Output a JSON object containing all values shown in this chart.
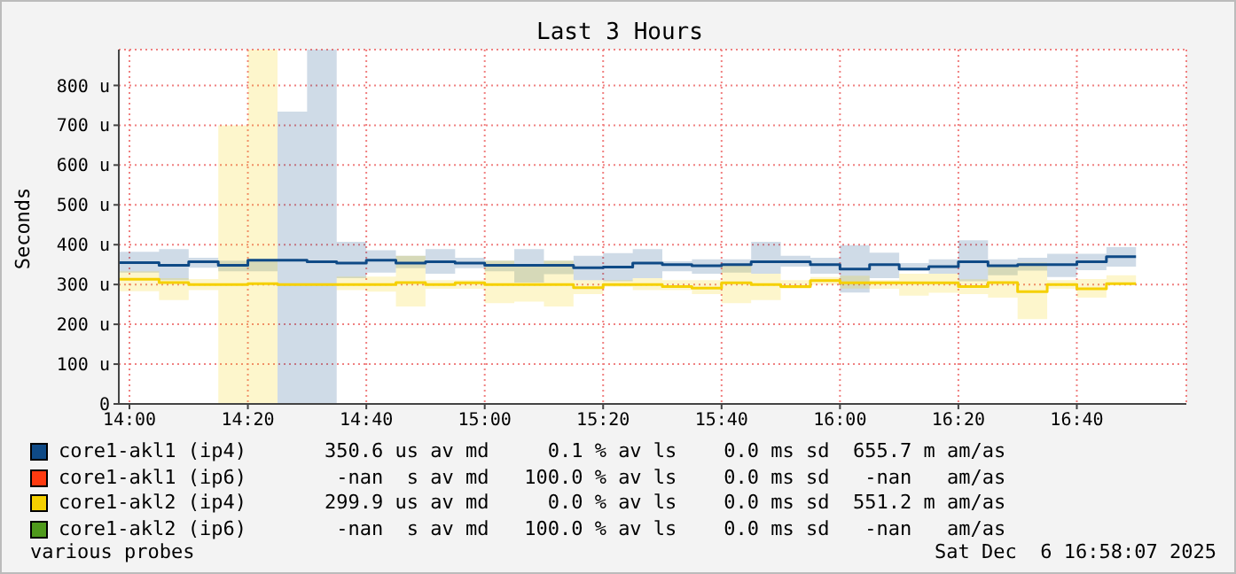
{
  "chart_data": {
    "type": "step",
    "title": "Last 3 Hours",
    "ylabel": "Seconds",
    "x": [
      13.97,
      14.0833,
      14.1667,
      14.25,
      14.3333,
      14.4167,
      14.5,
      14.5833,
      14.6667,
      14.75,
      14.8333,
      14.9167,
      15,
      15.0833,
      15.1667,
      15.25,
      15.3333,
      15.4167,
      15.5,
      15.5833,
      15.6667,
      15.75,
      15.8333,
      15.9167,
      16,
      16.0833,
      16.1667,
      16.25,
      16.3333,
      16.4167,
      16.5,
      16.5833,
      16.6667,
      16.75,
      16.8333
    ],
    "series": [
      {
        "name": "core1-akl1 (ip4)",
        "color": "#0f4a86",
        "values": [
          355,
          348,
          357,
          348,
          361,
          361,
          357,
          354,
          361,
          354,
          357,
          354,
          348,
          348,
          348,
          342,
          344,
          354,
          350,
          347,
          350,
          357,
          357,
          350,
          339,
          350,
          339,
          345,
          357,
          347,
          350,
          350,
          357,
          370,
          370
        ],
        "lower": [
          330,
          311,
          342,
          333,
          333,
          0,
          0,
          316,
          330,
          341,
          327,
          341,
          333,
          305,
          326,
          311,
          308,
          316,
          333,
          327,
          330,
          327,
          345,
          327,
          280,
          316,
          335,
          327,
          308,
          323,
          335,
          319,
          336,
          345,
          345
        ],
        "upper": [
          382,
          389,
          367,
          360,
          363,
          734,
          890,
          407,
          386,
          372,
          389,
          367,
          360,
          389,
          360,
          372,
          379,
          389,
          358,
          363,
          363,
          407,
          372,
          367,
          399,
          380,
          354,
          363,
          411,
          363,
          367,
          377,
          377,
          394,
          394
        ]
      },
      {
        "name": "core1-akl1 (ip6)",
        "color": "#ff3a10",
        "values": [
          null,
          null,
          null,
          null,
          null,
          null,
          null,
          null,
          null,
          null,
          null,
          null,
          null,
          null,
          null,
          null,
          null,
          null,
          null,
          null,
          null,
          null,
          null,
          null,
          null,
          null,
          null,
          null,
          null,
          null,
          null,
          null,
          null,
          null,
          null
        ]
      },
      {
        "name": "core1-akl2 (ip4)",
        "color": "#f5d000",
        "values": [
          313,
          305,
          300,
          300,
          302,
          300,
          300,
          300,
          300,
          305,
          300,
          304,
          300,
          300,
          300,
          292,
          300,
          300,
          295,
          291,
          304,
          300,
          295,
          310,
          304,
          304,
          304,
          304,
          295,
          305,
          282,
          300,
          289,
          302,
          302
        ],
        "lower": [
          283,
          261,
          286,
          0,
          0,
          null,
          null,
          286,
          282,
          245,
          289,
          289,
          253,
          257,
          245,
          276,
          294,
          286,
          286,
          276,
          253,
          261,
          289,
          300,
          290,
          289,
          272,
          279,
          276,
          267,
          213,
          289,
          267,
          300,
          300
        ],
        "upper": [
          333,
          316,
          314,
          700,
          890,
          null,
          null,
          320,
          320,
          372,
          311,
          311,
          360,
          345,
          360,
          311,
          311,
          316,
          311,
          311,
          348,
          327,
          311,
          319,
          322,
          311,
          327,
          327,
          313,
          345,
          355,
          311,
          314,
          323,
          323
        ]
      },
      {
        "name": "core1-akl2 (ip6)",
        "color": "#4f9a1c",
        "values": [
          null,
          null,
          null,
          null,
          null,
          null,
          null,
          null,
          null,
          null,
          null,
          null,
          null,
          null,
          null,
          null,
          null,
          null,
          null,
          null,
          null,
          null,
          null,
          null,
          null,
          null,
          null,
          null,
          null,
          null,
          null,
          null,
          null,
          null,
          null
        ]
      }
    ],
    "xlim": [
      13.97,
      16.975
    ],
    "xticks": [
      {
        "value": 14,
        "label": "14:00"
      },
      {
        "value": 14.3333,
        "label": "14:20"
      },
      {
        "value": 14.6667,
        "label": "14:40"
      },
      {
        "value": 15,
        "label": "15:00"
      },
      {
        "value": 15.3333,
        "label": "15:20"
      },
      {
        "value": 15.6667,
        "label": "15:40"
      },
      {
        "value": 16,
        "label": "16:00"
      },
      {
        "value": 16.3333,
        "label": "16:20"
      },
      {
        "value": 16.6667,
        "label": "16:40"
      }
    ],
    "ylim": [
      0,
      890
    ],
    "yticks": [
      0,
      {
        "value": 100,
        "label": "100 u"
      },
      {
        "value": 200,
        "label": "200 u"
      },
      {
        "value": 300,
        "label": "300 u"
      },
      {
        "value": 400,
        "label": "400 u"
      },
      {
        "value": 500,
        "label": "500 u"
      },
      {
        "value": 600,
        "label": "600 u"
      },
      {
        "value": 700,
        "label": "700 u"
      },
      {
        "value": 800,
        "label": "800 u"
      }
    ],
    "grid": true,
    "legend": "bottom",
    "annotations": [
      "350.6 us av md     0.1 % av ls    0.0 ms sd  655.7 m am/as",
      " -nan  s av md   100.0 % av ls    0.0 ms sd   -nan   am/as",
      "299.9 us av md     0.0 % av ls    0.0 ms sd  551.2 m am/as",
      " -nan  s av md   100.0 % av ls    0.0 ms sd   -nan   am/as",
      "various probes",
      "Sat Dec  6 16:58:07 2025"
    ]
  }
}
